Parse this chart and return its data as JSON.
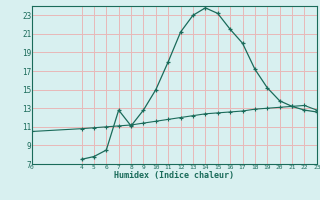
{
  "line1_x": [
    4,
    5,
    6,
    7,
    8,
    9,
    10,
    11,
    12,
    13,
    14,
    15,
    16,
    17,
    18,
    19,
    20,
    21,
    22,
    23
  ],
  "line1_y": [
    7.5,
    7.8,
    8.5,
    12.8,
    11.1,
    12.8,
    15.0,
    18.0,
    21.2,
    23.0,
    23.8,
    23.2,
    21.5,
    20.0,
    17.2,
    15.2,
    13.8,
    13.2,
    12.8,
    12.6
  ],
  "line2_x": [
    0,
    4,
    5,
    6,
    7,
    8,
    9,
    10,
    11,
    12,
    13,
    14,
    15,
    16,
    17,
    18,
    19,
    20,
    21,
    22,
    23
  ],
  "line2_y": [
    10.5,
    10.8,
    10.9,
    11.0,
    11.1,
    11.2,
    11.4,
    11.6,
    11.8,
    12.0,
    12.2,
    12.4,
    12.5,
    12.6,
    12.7,
    12.9,
    13.0,
    13.1,
    13.2,
    13.3,
    12.8
  ],
  "line_color": "#1a6b5a",
  "bg_color": "#d8f0f0",
  "grid_major_color": "#e8b8b8",
  "grid_minor_color": "#d8f0f0",
  "xlabel": "Humidex (Indice chaleur)",
  "xlim": [
    0,
    23
  ],
  "ylim": [
    7,
    24
  ],
  "yticks": [
    7,
    9,
    11,
    13,
    15,
    17,
    19,
    21,
    23
  ],
  "xticks": [
    0,
    4,
    5,
    6,
    7,
    8,
    9,
    10,
    11,
    12,
    13,
    14,
    15,
    16,
    17,
    18,
    19,
    20,
    21,
    22,
    23
  ]
}
